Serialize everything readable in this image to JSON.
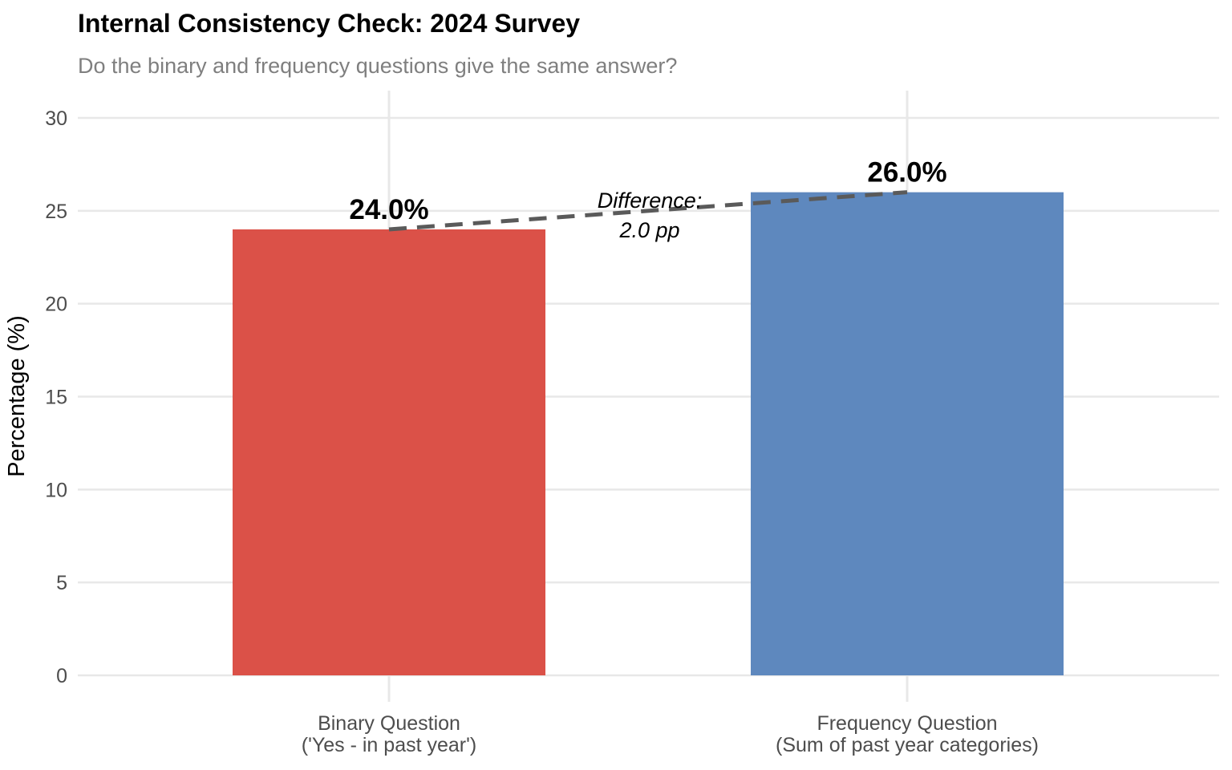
{
  "header": {
    "title": "Internal Consistency Check: 2024 Survey",
    "subtitle": "Do the binary and frequency questions give the same answer?"
  },
  "chart_data": {
    "type": "bar",
    "title": "Internal Consistency Check: 2024 Survey",
    "subtitle": "Do the binary and frequency questions give the same answer?",
    "categories": [
      {
        "line1": "Binary Question",
        "line2": "('Yes - in past year')"
      },
      {
        "line1": "Frequency Question",
        "line2": "(Sum of past year categories)"
      }
    ],
    "values": [
      24.0,
      26.0
    ],
    "bar_labels": [
      "24.0%",
      "26.0%"
    ],
    "bar_colors": [
      "#DB5148",
      "#5E88BE"
    ],
    "xlabel": "",
    "ylabel": "Percentage (%)",
    "ylim": [
      0,
      30
    ],
    "yticks": [
      0,
      5,
      10,
      15,
      20,
      25,
      30
    ],
    "grid": "major-x-and-y",
    "legend": "none",
    "annotation": {
      "line1": "Difference:",
      "line2": "2.0 pp"
    },
    "connector": {
      "style": "dashed",
      "color": "#5A5A5A"
    },
    "colors": {
      "gridline": "#E8E8E8",
      "tick_text": "#4D4D4D",
      "subtitle_text": "#7F7F7F",
      "title_text": "#000000",
      "background": "#FFFFFF"
    }
  }
}
